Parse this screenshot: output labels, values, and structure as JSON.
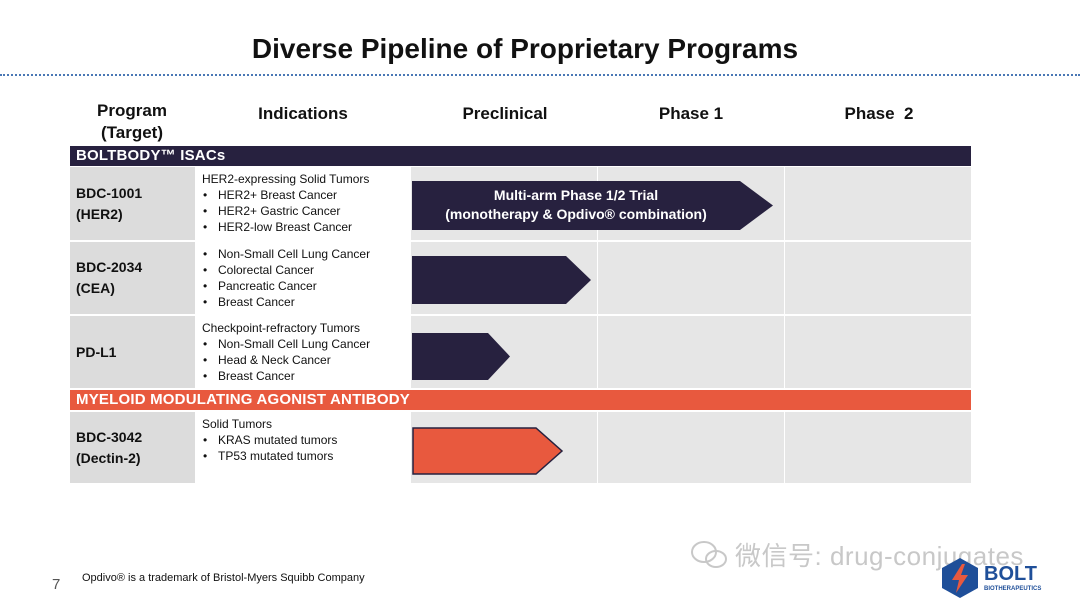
{
  "title": "Diverse Pipeline of Proprietary Programs",
  "columns": {
    "program_line1": "Program",
    "program_line2": "(Target)",
    "indications": "Indications",
    "preclinical": "Preclinical",
    "phase1": "Phase 1",
    "phase2": "Phase  2"
  },
  "sections": {
    "boltbody": "BOLTBODY™ ISACs",
    "myeloid": "MYELOID MODULATING AGONIST ANTIBODY"
  },
  "rows": [
    {
      "name": "BDC-1001",
      "target": "(HER2)",
      "ind_title": "HER2-expressing Solid Tumors",
      "items": [
        "HER2+ Breast Cancer",
        "HER2+ Gastric Cancer",
        "HER2-low Breast Cancer"
      ],
      "arrow_line1": "Multi-arm Phase 1/2 Trial",
      "arrow_line2": "(monotherapy & Opdivo® combination)"
    },
    {
      "name": "BDC-2034",
      "target": "(CEA)",
      "items": [
        "Non-Small Cell Lung Cancer",
        "Colorectal Cancer",
        "Pancreatic Cancer",
        "Breast Cancer"
      ]
    },
    {
      "name": "PD-L1",
      "ind_title": "Checkpoint-refractory Tumors",
      "items": [
        "Non-Small Cell Lung Cancer",
        "Head & Neck Cancer",
        "Breast Cancer"
      ]
    },
    {
      "name": "BDC-3042",
      "target": "(Dectin-2)",
      "ind_title": "Solid Tumors",
      "items": [
        "KRAS mutated tumors",
        "TP53 mutated tumors"
      ]
    }
  ],
  "colors": {
    "navy": "#27213f",
    "orange": "#e8593e",
    "accent_line": "#4a78b5"
  },
  "footnote": "Opdivo® is a trademark of Bristol-Myers Squibb Company",
  "page_number": "7",
  "watermark": "微信号: drug-conjugates",
  "logo": {
    "name": "BOLT",
    "sub": "BIOTHERAPEUTICS"
  }
}
